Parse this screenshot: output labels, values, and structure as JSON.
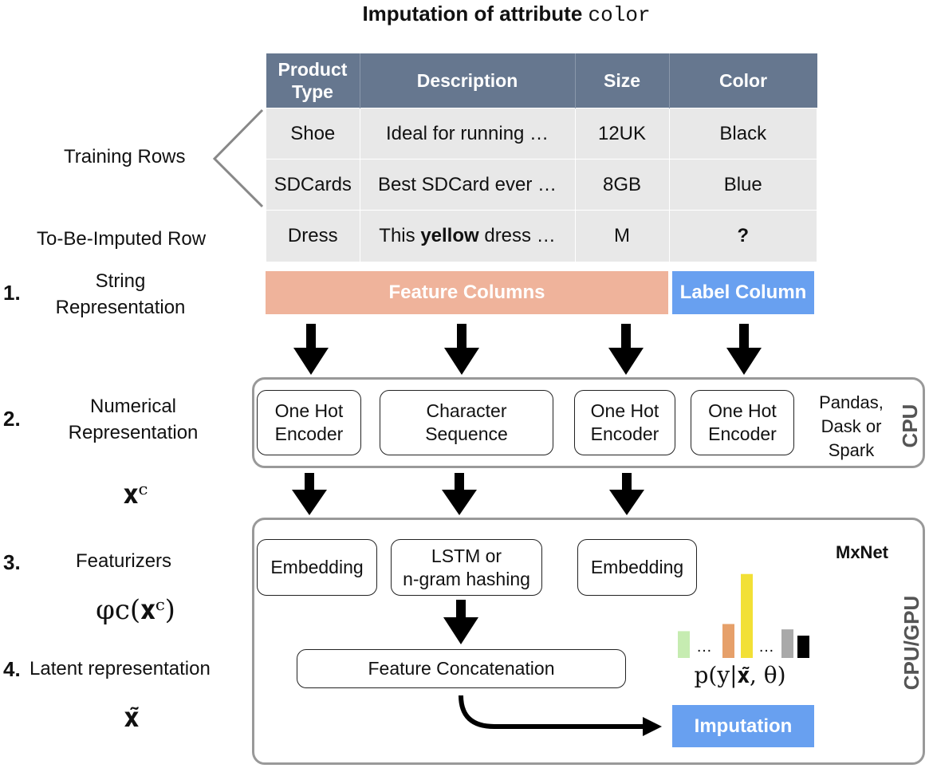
{
  "title": {
    "prefix": "Imputation of attribute",
    "attribute": "color"
  },
  "table": {
    "headers": [
      "Product\nType",
      "Description",
      "Size",
      "Color"
    ],
    "rows": [
      [
        "Shoe",
        "Ideal for running …",
        "12UK",
        "Black"
      ],
      [
        "SDCards",
        "Best SDCard ever …",
        "8GB",
        "Blue"
      ],
      [
        "Dress",
        "This yellow dress …",
        "M",
        "?"
      ]
    ],
    "bold_word": "yellow"
  },
  "row_labels": {
    "training": "Training Rows",
    "to_impute": "To-Be-Imputed Row"
  },
  "steps": [
    {
      "num": "1.",
      "label": "String\nRepresentation"
    },
    {
      "num": "2.",
      "label": "Numerical\nRepresentation"
    },
    {
      "num": "3.",
      "label": "Featurizers"
    },
    {
      "num": "4.",
      "label": "Latent representation"
    }
  ],
  "math": {
    "xc": "𝐱ᶜ",
    "phi": "φc(𝐱ᶜ)",
    "xtilde": "𝐱̃",
    "prob": "p(y|𝐱̃, θ)"
  },
  "bars": {
    "feature_columns": "Feature Columns",
    "label_column": "Label Column",
    "imputation": "Imputation"
  },
  "cpu_group": {
    "side_label": "CPU",
    "note": "Pandas,\nDask or\nSpark",
    "boxes": [
      "One Hot\nEncoder",
      "Character\nSequence",
      "One Hot\nEncoder",
      "One Hot\nEncoder"
    ]
  },
  "gpu_group": {
    "side_label": "CPU/GPU",
    "framework": "MxNet",
    "boxes": [
      "Embedding",
      "LSTM or\nn-gram hashing",
      "Embedding"
    ],
    "concat": "Feature Concatenation"
  },
  "histogram": {
    "ellipsis": "…",
    "values": [
      0.3,
      0.38,
      0.94,
      0.32,
      0.25
    ],
    "colors": [
      "#c6ecb1",
      "#e6a06a",
      "#f2e036",
      "#a9a9a9",
      "#000000"
    ]
  }
}
